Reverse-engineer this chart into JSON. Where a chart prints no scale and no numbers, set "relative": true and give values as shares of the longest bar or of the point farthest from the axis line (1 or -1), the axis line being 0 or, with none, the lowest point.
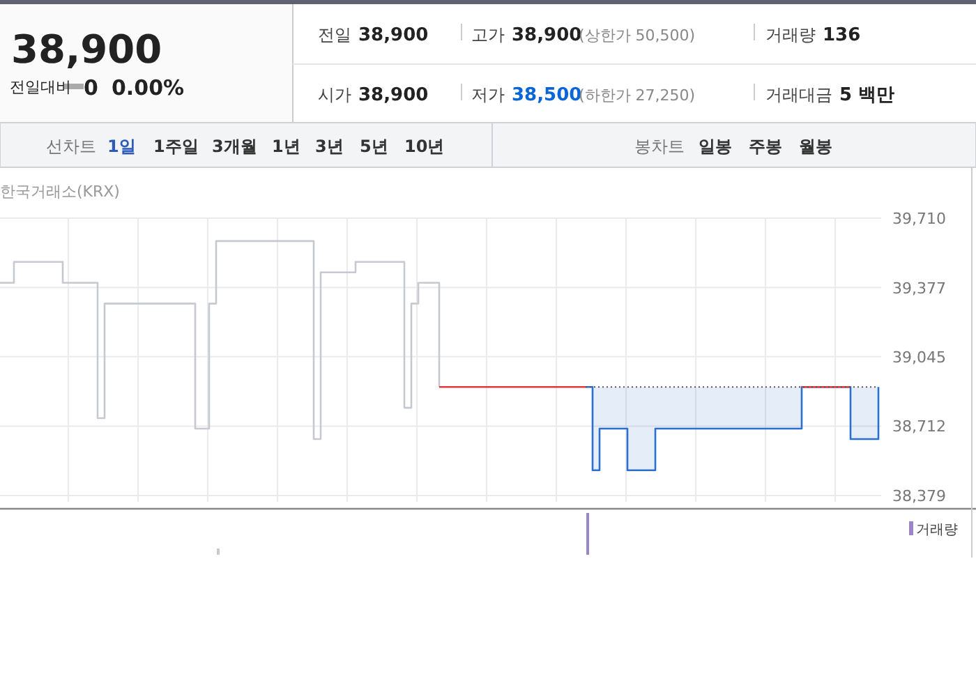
{
  "chart_data": [
    {
      "type": "step",
      "subtitle": "한국거래소(KRX)",
      "annotations": [
        "38,900",
        "전일대비",
        "0",
        "0.00%",
        "전일",
        "38,900",
        "고가",
        "38,900",
        "(상한가 50,500)",
        "거래량",
        "136",
        "시가",
        "38,900",
        "저가",
        "38,500",
        "(하한가 27,250)",
        "거래대금",
        "5 백만",
        "선차트",
        "1일",
        "1주일",
        "3개월",
        "1년",
        "3년",
        "5년",
        "10년",
        "봉차트",
        "일봉",
        "주봉",
        "월봉"
      ],
      "categories": [
        null,
        null,
        null,
        null,
        null,
        null,
        null,
        null,
        null,
        null,
        null,
        null,
        null,
        null,
        null,
        null,
        null,
        null,
        null,
        null,
        null,
        null,
        null,
        null,
        null,
        null,
        null,
        null,
        null,
        null,
        null,
        null,
        null,
        null,
        null,
        null,
        null,
        null,
        null,
        null,
        null,
        null,
        null,
        null,
        null,
        null,
        null,
        null,
        null,
        null,
        null,
        null,
        null,
        null,
        null,
        null,
        null,
        null,
        null,
        null,
        null,
        null,
        null,
        null,
        null,
        null,
        null,
        null,
        null,
        null,
        null,
        null,
        null,
        null,
        null,
        null,
        null,
        null,
        null,
        null,
        null,
        null,
        null,
        null,
        null,
        null,
        null,
        null,
        null,
        null,
        null,
        null,
        null,
        null,
        null,
        null,
        null,
        null,
        null,
        null,
        null,
        null,
        null,
        null,
        null,
        null,
        null,
        null,
        null,
        null,
        null,
        null,
        null,
        null,
        null,
        null,
        null,
        null,
        null,
        null,
        null,
        null,
        null,
        null,
        null,
        null,
        null
      ],
      "series": [
        {
          "color": "#c6c9d1",
          "values": [
            39400,
            39400,
            39500,
            39500,
            39500,
            39500,
            39500,
            39500,
            39500,
            39400,
            39400,
            39400,
            39400,
            39400,
            38750,
            39300,
            39300,
            39300,
            39300,
            39300,
            39300,
            39300,
            39300,
            39300,
            39300,
            39300,
            39300,
            39300,
            38700,
            38700,
            39300,
            39600,
            39600,
            39600,
            39600,
            39600,
            39600,
            39600,
            39600,
            39600,
            39600,
            39600,
            39600,
            39600,
            39600,
            38650,
            39450,
            39450,
            39450,
            39450,
            39450,
            39500,
            39500,
            39500,
            39500,
            39500,
            39500,
            39500,
            38800,
            39300,
            39400,
            39400,
            39400,
            38900,
            null,
            null,
            null,
            null,
            null,
            null,
            null,
            null,
            null,
            null,
            null,
            null,
            null,
            null,
            null,
            null,
            null,
            null,
            null,
            null,
            null,
            null,
            null,
            null,
            null,
            null,
            null,
            null,
            null,
            null,
            null,
            null,
            null,
            null,
            null,
            null,
            null,
            null,
            null,
            null,
            null,
            null,
            null,
            null,
            null,
            null,
            null,
            null,
            null,
            null,
            null,
            null,
            null,
            null,
            null,
            null,
            null,
            null,
            null,
            null,
            null,
            null,
            null
          ]
        },
        {
          "type": "area",
          "color": "#2a6fd1",
          "values": [
            null,
            null,
            null,
            null,
            null,
            null,
            null,
            null,
            null,
            null,
            null,
            null,
            null,
            null,
            null,
            null,
            null,
            null,
            null,
            null,
            null,
            null,
            null,
            null,
            null,
            null,
            null,
            null,
            null,
            null,
            null,
            null,
            null,
            null,
            null,
            null,
            null,
            null,
            null,
            null,
            null,
            null,
            null,
            null,
            null,
            null,
            null,
            null,
            null,
            null,
            null,
            null,
            null,
            null,
            null,
            null,
            null,
            null,
            null,
            null,
            null,
            null,
            null,
            null,
            null,
            null,
            null,
            null,
            null,
            null,
            null,
            null,
            null,
            null,
            null,
            null,
            null,
            null,
            null,
            null,
            null,
            null,
            null,
            null,
            38900,
            38500,
            38700,
            38700,
            38700,
            38700,
            38500,
            38500,
            38500,
            38500,
            38700,
            38700,
            38700,
            38700,
            38700,
            38700,
            38700,
            38700,
            38700,
            38700,
            38700,
            38700,
            38700,
            38700,
            38700,
            38700,
            38700,
            38700,
            38700,
            38700,
            38700,
            38900,
            38900,
            38900,
            38900,
            38900,
            38900,
            38900,
            38650,
            38650,
            38650,
            38650,
            38900
          ]
        },
        {
          "color": "#e0393e",
          "values": [
            null,
            null,
            null,
            null,
            null,
            null,
            null,
            null,
            null,
            null,
            null,
            null,
            null,
            null,
            null,
            null,
            null,
            null,
            null,
            null,
            null,
            null,
            null,
            null,
            null,
            null,
            null,
            null,
            null,
            null,
            null,
            null,
            null,
            null,
            null,
            null,
            null,
            null,
            null,
            null,
            null,
            null,
            null,
            null,
            null,
            null,
            null,
            null,
            null,
            null,
            null,
            null,
            null,
            null,
            null,
            null,
            null,
            null,
            null,
            null,
            null,
            null,
            null,
            38900,
            38900,
            38900,
            38900,
            38900,
            38900,
            38900,
            38900,
            38900,
            38900,
            38900,
            38900,
            38900,
            38900,
            38900,
            38900,
            38900,
            38900,
            38900,
            38900,
            38900,
            38900,
            null,
            null,
            null,
            null,
            null,
            null,
            null,
            null,
            null,
            null,
            null,
            null,
            null,
            null,
            null,
            null,
            null,
            null,
            null,
            null,
            null,
            null,
            null,
            null,
            null,
            null,
            null,
            null,
            null,
            null,
            38900,
            38900,
            38900,
            38900,
            38900,
            38900,
            38900,
            38900,
            null,
            null,
            null,
            null
          ]
        },
        {
          "type": "line",
          "line_style": "dotted",
          "color": "#555555",
          "values": [
            null,
            null,
            null,
            null,
            null,
            null,
            null,
            null,
            null,
            null,
            null,
            null,
            null,
            null,
            null,
            null,
            null,
            null,
            null,
            null,
            null,
            null,
            null,
            null,
            null,
            null,
            null,
            null,
            null,
            null,
            null,
            null,
            null,
            null,
            null,
            null,
            null,
            null,
            null,
            null,
            null,
            null,
            null,
            null,
            null,
            null,
            null,
            null,
            null,
            null,
            null,
            null,
            null,
            null,
            null,
            null,
            null,
            null,
            null,
            null,
            null,
            null,
            null,
            null,
            null,
            null,
            null,
            null,
            null,
            null,
            null,
            null,
            null,
            null,
            null,
            null,
            null,
            null,
            null,
            null,
            null,
            null,
            null,
            null,
            38900,
            38900,
            38900,
            38900,
            38900,
            38900,
            38900,
            38900,
            38900,
            38900,
            38900,
            38900,
            38900,
            38900,
            38900,
            38900,
            38900,
            38900,
            38900,
            38900,
            38900,
            38900,
            38900,
            38900,
            38900,
            38900,
            38900,
            38900,
            38900,
            38900,
            38900,
            38900,
            38900,
            38900,
            38900,
            38900,
            38900,
            38900,
            38900,
            38900,
            38900,
            38900,
            38900
          ]
        }
      ],
      "line_style": "solid",
      "ylim": [
        38379,
        39710
      ],
      "yticks": [
        {
          "value": 39710,
          "label": "39,710"
        },
        {
          "value": 39377,
          "label": "39,377"
        },
        {
          "value": 39045,
          "label": "39,045"
        },
        {
          "value": 38712,
          "label": "38,712"
        },
        {
          "value": 38379,
          "label": "38,379"
        }
      ],
      "grid": true
    },
    {
      "type": "bar",
      "relative": true,
      "legend": "top right",
      "categories": [
        null,
        null,
        null,
        null,
        null,
        null,
        null,
        null,
        null,
        null,
        null,
        null,
        null,
        null,
        null,
        null,
        null,
        null,
        null,
        null,
        null,
        null,
        null,
        null,
        null,
        null,
        null,
        null,
        null,
        null,
        null,
        null,
        null,
        null,
        null,
        null,
        null,
        null,
        null,
        null,
        null,
        null,
        null,
        null,
        null,
        null,
        null,
        null,
        null,
        null,
        null,
        null,
        null,
        null,
        null,
        null,
        null,
        null,
        null,
        null,
        null,
        null,
        null,
        null,
        null,
        null,
        null,
        null,
        null,
        null,
        null,
        null,
        null,
        null,
        null,
        null,
        null,
        null,
        null,
        null,
        null,
        null,
        null,
        null,
        null,
        null,
        null,
        null,
        null,
        null,
        null,
        null,
        null,
        null,
        null,
        null,
        null,
        null,
        null,
        null,
        null,
        null,
        null,
        null,
        null,
        null,
        null,
        null,
        null,
        null,
        null,
        null,
        null,
        null,
        null,
        null,
        null,
        null,
        null,
        null,
        null,
        null,
        null,
        null,
        null,
        null,
        null
      ],
      "series": [
        {
          "color": "#c6c9d1",
          "values": [
            null,
            null,
            null,
            null,
            null,
            null,
            null,
            null,
            null,
            null,
            null,
            null,
            null,
            null,
            null,
            null,
            null,
            null,
            null,
            null,
            null,
            null,
            null,
            null,
            null,
            null,
            null,
            null,
            null,
            null,
            null,
            0.15,
            null,
            null,
            null,
            null,
            null,
            null,
            null,
            null,
            null,
            null,
            null,
            null,
            null,
            null,
            null,
            null,
            null,
            null,
            null,
            null,
            null,
            null,
            null,
            null,
            null,
            null,
            null,
            null,
            null,
            null,
            null,
            null,
            null,
            null,
            null,
            null,
            null,
            null,
            null,
            null,
            null,
            null,
            null,
            null,
            null,
            null,
            null,
            null,
            null,
            null,
            null,
            null,
            null,
            null,
            null,
            null,
            null,
            null,
            null,
            null,
            null,
            null,
            null,
            null,
            null,
            null,
            null,
            null,
            null,
            null,
            null,
            null,
            null,
            null,
            null,
            null,
            null,
            null,
            null,
            null,
            null,
            null,
            null,
            null,
            null,
            null,
            null,
            null,
            null,
            null,
            null,
            null,
            null,
            null,
            null
          ]
        },
        {
          "name": "거래량",
          "color": "#9b87c8",
          "values": [
            null,
            null,
            null,
            null,
            null,
            null,
            null,
            null,
            null,
            null,
            null,
            null,
            null,
            null,
            null,
            null,
            null,
            null,
            null,
            null,
            null,
            null,
            null,
            null,
            null,
            null,
            null,
            null,
            null,
            null,
            null,
            null,
            null,
            null,
            null,
            null,
            null,
            null,
            null,
            null,
            null,
            null,
            null,
            null,
            null,
            null,
            null,
            null,
            null,
            null,
            null,
            null,
            null,
            null,
            null,
            null,
            null,
            null,
            null,
            null,
            null,
            null,
            null,
            null,
            null,
            null,
            null,
            null,
            null,
            null,
            null,
            null,
            null,
            null,
            null,
            null,
            null,
            null,
            null,
            null,
            null,
            null,
            null,
            null,
            1,
            null,
            null,
            null,
            null,
            null,
            null,
            null,
            null,
            null,
            null,
            null,
            null,
            null,
            null,
            null,
            null,
            null,
            null,
            null,
            null,
            null,
            null,
            null,
            null,
            null,
            null,
            null,
            null,
            null,
            null,
            null,
            null,
            null,
            null,
            null,
            null,
            null,
            null,
            null,
            null,
            null,
            null
          ]
        }
      ]
    }
  ]
}
